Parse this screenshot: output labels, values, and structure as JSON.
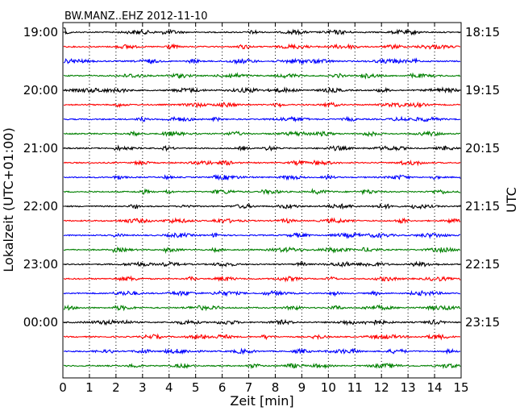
{
  "chart_data": {
    "type": "line",
    "title": "BW.MANZ..EHZ 2012-11-10",
    "xlabel": "Zeit  [min]",
    "ylabel_left": "Lokalzeit (UTC+01:00)",
    "ylabel_right": "UTC",
    "xlim": [
      0,
      15
    ],
    "x_ticks": [
      "0",
      "1",
      "2",
      "3",
      "4",
      "5",
      "6",
      "7",
      "8",
      "9",
      "10",
      "11",
      "12",
      "13",
      "14",
      "15"
    ],
    "grid": "vertical dotted",
    "left_ticks": [
      "19:00",
      "20:00",
      "21:00",
      "22:00",
      "23:00",
      "00:00"
    ],
    "right_ticks": [
      "18:15",
      "19:15",
      "20:15",
      "21:15",
      "22:15",
      "23:15"
    ],
    "trace_count": 24,
    "trace_interval_min": 15,
    "trace_colors": [
      "#000000",
      "#ff0000",
      "#0000ff",
      "#008000"
    ]
  }
}
